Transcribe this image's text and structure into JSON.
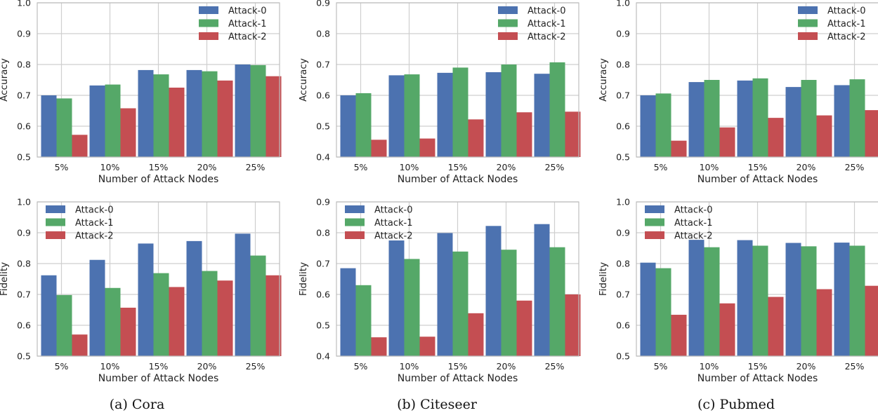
{
  "colors": {
    "Attack-0": "#4c72b0",
    "Attack-1": "#55a868",
    "Attack-2": "#c44e52",
    "grid": "#cfcfcf",
    "frame": "#bdbdbd"
  },
  "captions": [
    "(a) Cora",
    "(b) Citeseer",
    "(c) Pubmed"
  ],
  "chart_data": [
    {
      "type": "bar",
      "dataset": "Cora",
      "categories": [
        "5%",
        "10%",
        "15%",
        "20%",
        "25%"
      ],
      "xlabel": "Number of Attack Nodes",
      "ylabel": "Accuracy",
      "ylim": [
        0.5,
        1.0
      ],
      "yticks": [
        "0.5",
        "0.6",
        "0.7",
        "0.8",
        "0.9",
        "1.0"
      ],
      "legend": "top-right",
      "grid": true,
      "series": [
        {
          "name": "Attack-0",
          "values": [
            0.7,
            0.732,
            0.782,
            0.782,
            0.8
          ]
        },
        {
          "name": "Attack-1",
          "values": [
            0.69,
            0.735,
            0.768,
            0.778,
            0.798
          ]
        },
        {
          "name": "Attack-2",
          "values": [
            0.572,
            0.658,
            0.725,
            0.748,
            0.762
          ]
        }
      ]
    },
    {
      "type": "bar",
      "dataset": "Citeseer",
      "categories": [
        "5%",
        "10%",
        "15%",
        "20%",
        "25%"
      ],
      "xlabel": "Number of Attack Nodes",
      "ylabel": "Accuracy",
      "ylim": [
        0.4,
        0.9
      ],
      "yticks": [
        "0.4",
        "0.5",
        "0.6",
        "0.7",
        "0.8",
        "0.9"
      ],
      "legend": "top-right",
      "grid": true,
      "series": [
        {
          "name": "Attack-0",
          "values": [
            0.6,
            0.665,
            0.673,
            0.675,
            0.67
          ]
        },
        {
          "name": "Attack-1",
          "values": [
            0.607,
            0.668,
            0.69,
            0.7,
            0.707
          ]
        },
        {
          "name": "Attack-2",
          "values": [
            0.456,
            0.46,
            0.522,
            0.545,
            0.547
          ]
        }
      ]
    },
    {
      "type": "bar",
      "dataset": "Pubmed",
      "categories": [
        "5%",
        "10%",
        "15%",
        "20%",
        "25%"
      ],
      "xlabel": "Number of Attack Nodes",
      "ylabel": "Accuracy",
      "ylim": [
        0.5,
        1.0
      ],
      "yticks": [
        "0.5",
        "0.6",
        "0.7",
        "0.8",
        "0.9",
        "1.0"
      ],
      "legend": "top-right",
      "grid": true,
      "series": [
        {
          "name": "Attack-0",
          "values": [
            0.7,
            0.743,
            0.748,
            0.727,
            0.733
          ]
        },
        {
          "name": "Attack-1",
          "values": [
            0.706,
            0.75,
            0.755,
            0.75,
            0.752
          ]
        },
        {
          "name": "Attack-2",
          "values": [
            0.553,
            0.596,
            0.627,
            0.635,
            0.652
          ]
        }
      ]
    },
    {
      "type": "bar",
      "dataset": "Cora",
      "categories": [
        "5%",
        "10%",
        "15%",
        "20%",
        "25%"
      ],
      "xlabel": "Number of Attack Nodes",
      "ylabel": "Fidelity",
      "ylim": [
        0.5,
        1.0
      ],
      "yticks": [
        "0.5",
        "0.6",
        "0.7",
        "0.8",
        "0.9",
        "1.0"
      ],
      "legend": "top-left",
      "grid": true,
      "series": [
        {
          "name": "Attack-0",
          "values": [
            0.762,
            0.812,
            0.865,
            0.873,
            0.897
          ]
        },
        {
          "name": "Attack-1",
          "values": [
            0.698,
            0.721,
            0.769,
            0.776,
            0.826
          ]
        },
        {
          "name": "Attack-2",
          "values": [
            0.57,
            0.657,
            0.724,
            0.745,
            0.762
          ]
        }
      ]
    },
    {
      "type": "bar",
      "dataset": "Citeseer",
      "categories": [
        "5%",
        "10%",
        "15%",
        "20%",
        "25%"
      ],
      "xlabel": "Number of Attack Nodes",
      "ylabel": "Fidelity",
      "ylim": [
        0.4,
        0.9
      ],
      "yticks": [
        "0.4",
        "0.5",
        "0.6",
        "0.7",
        "0.8",
        "0.9"
      ],
      "legend": "top-left",
      "grid": true,
      "series": [
        {
          "name": "Attack-0",
          "values": [
            0.685,
            0.775,
            0.799,
            0.822,
            0.828
          ]
        },
        {
          "name": "Attack-1",
          "values": [
            0.63,
            0.715,
            0.739,
            0.745,
            0.753
          ]
        },
        {
          "name": "Attack-2",
          "values": [
            0.461,
            0.463,
            0.539,
            0.58,
            0.6
          ]
        }
      ]
    },
    {
      "type": "bar",
      "dataset": "Pubmed",
      "categories": [
        "5%",
        "10%",
        "15%",
        "20%",
        "25%"
      ],
      "xlabel": "Number of Attack Nodes",
      "ylabel": "Fidelity",
      "ylim": [
        0.5,
        1.0
      ],
      "yticks": [
        "0.5",
        "0.6",
        "0.7",
        "0.8",
        "0.9",
        "1.0"
      ],
      "legend": "top-left",
      "grid": true,
      "series": [
        {
          "name": "Attack-0",
          "values": [
            0.803,
            0.877,
            0.876,
            0.867,
            0.868
          ]
        },
        {
          "name": "Attack-1",
          "values": [
            0.785,
            0.853,
            0.858,
            0.856,
            0.858
          ]
        },
        {
          "name": "Attack-2",
          "values": [
            0.634,
            0.671,
            0.692,
            0.717,
            0.728
          ]
        }
      ]
    }
  ]
}
